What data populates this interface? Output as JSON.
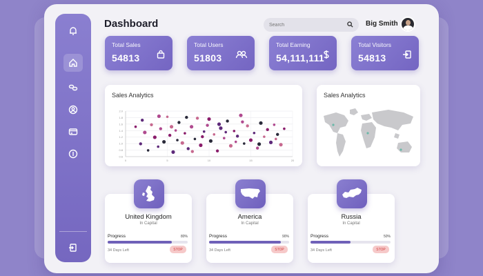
{
  "header": {
    "title": "Dashboard",
    "search_placeholder": "Search",
    "user_name": "Big Smith"
  },
  "sidebar": {
    "items": [
      {
        "icon": "bell-icon"
      },
      {
        "icon": "home-icon",
        "active": true
      },
      {
        "icon": "link-icon"
      },
      {
        "icon": "user-icon"
      },
      {
        "icon": "card-icon"
      },
      {
        "icon": "info-icon"
      }
    ],
    "bottom_icon": "logout-icon"
  },
  "stats": [
    {
      "label": "Total Sales",
      "value": "54813",
      "icon": "bag-icon"
    },
    {
      "label": "Total Users",
      "value": "51803",
      "icon": "users-icon"
    },
    {
      "label": "Total Earning",
      "value": "54,111,111",
      "icon": "dollar-icon"
    },
    {
      "label": "Total Visitors",
      "value": "54813",
      "icon": "enter-icon"
    }
  ],
  "scatter_card": {
    "title": "Sales Analytics"
  },
  "map_card": {
    "title": "Sales Analytics"
  },
  "countries": [
    {
      "name": "United Kingdom",
      "sub": "In Capital",
      "progress_label": "Progress",
      "progress_pct": "80%",
      "progress": 0.8,
      "days": "34 Days Left",
      "button": "STOP"
    },
    {
      "name": "America",
      "sub": "In Capital",
      "progress_label": "Progress",
      "progress_pct": "90%",
      "progress": 0.9,
      "days": "34 Days Left",
      "button": "STOP"
    },
    {
      "name": "Russia",
      "sub": "In Capital",
      "progress_label": "Progress",
      "progress_pct": "50%",
      "progress": 0.5,
      "days": "34 Days Left",
      "button": "STOP"
    }
  ],
  "chart_data": {
    "type": "scatter",
    "title": "Sales Analytics",
    "xlabel": "",
    "ylabel": "",
    "x_ticks": [
      "0",
      "5",
      "10",
      "15",
      "20"
    ],
    "y_ticks": [
      "2.0",
      "1.8",
      "1.6",
      "1.4",
      "1.2",
      "1.0",
      "0.8",
      "0.6"
    ],
    "xlim": [
      0,
      20
    ],
    "ylim": [
      0.5,
      2.1
    ],
    "grid": true,
    "point_colors": [
      "#8a1d6b",
      "#5e2a7a",
      "#b04a8f",
      "#2a2a3a",
      "#c7698f"
    ],
    "points": [
      [
        1.2,
        1.55
      ],
      [
        1.8,
        0.95
      ],
      [
        2.3,
        1.35
      ],
      [
        2.7,
        0.72
      ],
      [
        3.1,
        1.62
      ],
      [
        3.5,
        1.18
      ],
      [
        3.9,
        0.85
      ],
      [
        4.2,
        1.48
      ],
      [
        4.6,
        1.02
      ],
      [
        5.0,
        1.9
      ],
      [
        5.3,
        1.25
      ],
      [
        5.7,
        0.66
      ],
      [
        6.0,
        1.42
      ],
      [
        6.4,
        1.7
      ],
      [
        6.8,
        0.98
      ],
      [
        7.1,
        1.32
      ],
      [
        7.5,
        0.78
      ],
      [
        7.9,
        1.55
      ],
      [
        8.3,
        1.12
      ],
      [
        8.6,
        1.85
      ],
      [
        9.0,
        0.9
      ],
      [
        9.4,
        1.38
      ],
      [
        9.8,
        1.6
      ],
      [
        10.2,
        1.05
      ],
      [
        10.6,
        1.28
      ],
      [
        11.0,
        0.7
      ],
      [
        11.4,
        1.5
      ],
      [
        11.8,
        1.15
      ],
      [
        12.2,
        1.75
      ],
      [
        12.6,
        0.88
      ],
      [
        13.0,
        1.4
      ],
      [
        13.4,
        1.22
      ],
      [
        13.8,
        1.95
      ],
      [
        14.2,
        0.96
      ],
      [
        14.6,
        1.58
      ],
      [
        15.0,
        1.08
      ],
      [
        15.4,
        1.33
      ],
      [
        15.8,
        0.8
      ],
      [
        16.2,
        1.68
      ],
      [
        16.6,
        1.2
      ],
      [
        17.0,
        1.45
      ],
      [
        17.4,
        1.0
      ],
      [
        17.8,
        1.62
      ],
      [
        18.2,
        1.28
      ],
      [
        18.6,
        0.92
      ],
      [
        19.0,
        1.48
      ],
      [
        2.0,
        1.78
      ],
      [
        4.0,
        1.92
      ],
      [
        6.2,
        1.08
      ],
      [
        8.0,
        0.68
      ],
      [
        10.0,
        1.82
      ],
      [
        12.0,
        1.36
      ],
      [
        14.0,
        1.72
      ],
      [
        16.0,
        0.94
      ],
      [
        18.0,
        1.12
      ],
      [
        9.2,
        1.2
      ],
      [
        11.2,
        1.64
      ],
      [
        13.2,
        1.02
      ],
      [
        7.3,
        1.88
      ],
      [
        5.5,
        1.55
      ]
    ]
  }
}
